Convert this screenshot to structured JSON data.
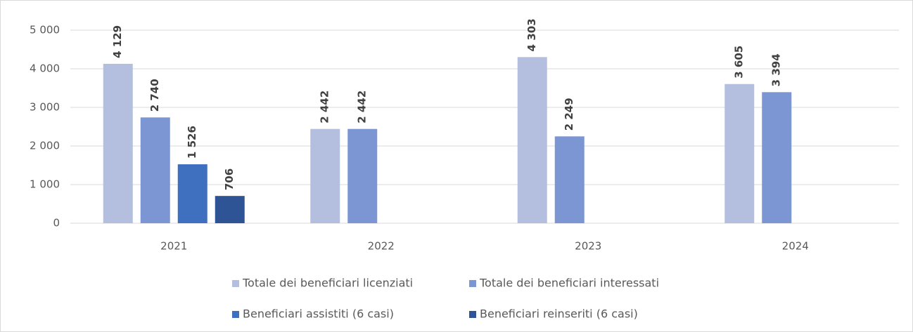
{
  "chart_data": {
    "type": "bar",
    "categories": [
      "2021",
      "2022",
      "2023",
      "2024"
    ],
    "series": [
      {
        "name": "Totale dei beneficiari licenziati",
        "color": "#b4bfe0",
        "values": [
          4129,
          2442,
          4303,
          3605
        ],
        "value_labels": [
          "4 129",
          "2 442",
          "4 303",
          "3 605"
        ]
      },
      {
        "name": "Totale dei beneficiari interessati",
        "color": "#7b96d2",
        "values": [
          2740,
          2442,
          2249,
          3394
        ],
        "value_labels": [
          "2 740",
          "2 442",
          "2 249",
          "3 394"
        ]
      },
      {
        "name": "Beneficiari assistiti (6 casi)",
        "color": "#3f6fbf",
        "values": [
          1526,
          null,
          null,
          null
        ],
        "value_labels": [
          "1 526",
          null,
          null,
          null
        ]
      },
      {
        "name": "Beneficiari reinseriti (6 casi)",
        "color": "#2f5496",
        "values": [
          706,
          null,
          null,
          null
        ],
        "value_labels": [
          "706",
          null,
          null,
          null
        ]
      }
    ],
    "ylim": [
      0,
      5000
    ],
    "yticks": [
      0,
      {
        "value": 1000,
        "label": "1 000"
      },
      {
        "value": 2000,
        "label": "2 000"
      },
      {
        "value": 3000,
        "label": "3 000"
      },
      {
        "value": 4000,
        "label": "4 000"
      },
      {
        "value": 5000,
        "label": "5 000"
      }
    ],
    "grid": true,
    "legend": "bottom"
  }
}
